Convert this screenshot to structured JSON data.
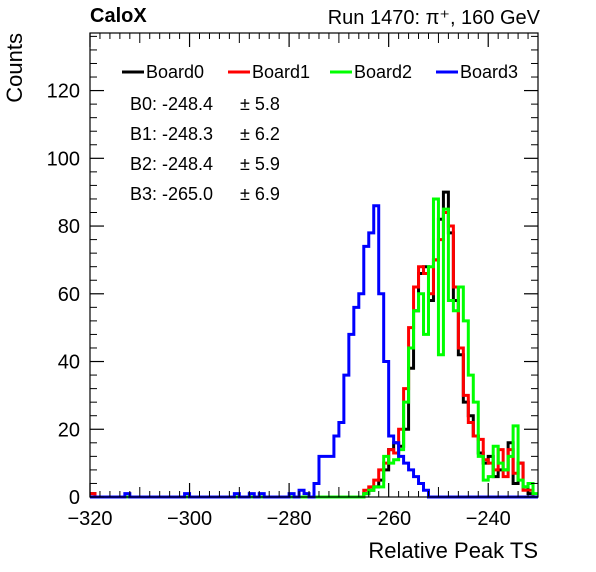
{
  "header": {
    "title_left": "CaloX",
    "title_right": "Run 1470:   π⁺, 160 GeV"
  },
  "chart_data": {
    "type": "histogram",
    "title": "",
    "xlabel": "Relative Peak TS",
    "ylabel": "Counts",
    "xlim": [
      -320,
      -230
    ],
    "ylim": [
      0,
      137
    ],
    "bin_width": 1,
    "bin_start": -320,
    "x_ticks": [
      -320,
      -300,
      -280,
      -260,
      -240
    ],
    "y_ticks": [
      0,
      20,
      40,
      60,
      80,
      100,
      120
    ],
    "grid": false,
    "legend_position": "top",
    "series": [
      {
        "name": "Board0",
        "color": "#000000",
        "values": [
          1,
          0,
          0,
          0,
          0,
          0,
          0,
          0,
          0,
          0,
          0,
          0,
          0,
          0,
          0,
          0,
          0,
          0,
          0,
          0,
          0,
          0,
          0,
          0,
          0,
          0,
          0,
          0,
          0,
          0,
          0,
          0,
          0,
          0,
          0,
          0,
          0,
          0,
          0,
          0,
          0,
          0,
          0,
          0,
          0,
          0,
          0,
          0,
          0,
          0,
          0,
          0,
          0,
          0,
          0,
          1,
          2,
          3,
          5,
          8,
          14,
          16,
          15,
          20,
          38,
          55,
          66,
          68,
          58,
          70,
          82,
          90,
          78,
          58,
          42,
          28,
          24,
          18,
          13,
          10,
          12,
          6,
          8,
          8,
          16,
          4,
          10,
          3,
          1,
          0
        ]
      },
      {
        "name": "Board1",
        "color": "#ff0000",
        "values": [
          1,
          0,
          0,
          0,
          0,
          0,
          0,
          0,
          0,
          0,
          0,
          0,
          0,
          0,
          0,
          0,
          0,
          0,
          0,
          0,
          0,
          0,
          0,
          0,
          0,
          0,
          0,
          0,
          0,
          0,
          0,
          0,
          0,
          0,
          0,
          0,
          0,
          0,
          0,
          0,
          0,
          0,
          0,
          0,
          0,
          0,
          0,
          0,
          0,
          0,
          0,
          0,
          0,
          0,
          0,
          2,
          3,
          5,
          8,
          10,
          14,
          13,
          20,
          32,
          50,
          62,
          68,
          66,
          60,
          70,
          76,
          84,
          80,
          62,
          44,
          30,
          22,
          18,
          17,
          11,
          10,
          8,
          14,
          6,
          14,
          7,
          10,
          2,
          2,
          0
        ]
      },
      {
        "name": "Board2",
        "color": "#00ff00",
        "values": [
          0,
          0,
          0,
          0,
          0,
          0,
          0,
          0,
          0,
          0,
          0,
          0,
          0,
          0,
          0,
          0,
          0,
          0,
          0,
          0,
          0,
          0,
          0,
          0,
          0,
          0,
          0,
          0,
          0,
          0,
          0,
          0,
          0,
          0,
          0,
          0,
          0,
          0,
          0,
          0,
          0,
          0,
          0,
          0,
          0,
          0,
          0,
          0,
          0,
          0,
          0,
          0,
          0,
          0,
          0,
          1,
          2,
          3,
          3,
          12,
          10,
          11,
          14,
          28,
          44,
          55,
          60,
          48,
          68,
          88,
          42,
          85,
          58,
          55,
          62,
          52,
          36,
          28,
          12,
          5,
          6,
          15,
          10,
          8,
          12,
          21,
          5,
          3,
          4,
          1
        ]
      },
      {
        "name": "Board3",
        "color": "#0000ff",
        "values": [
          0,
          0,
          0,
          0,
          0,
          0,
          0,
          1,
          0,
          0,
          0,
          0,
          0,
          0,
          0,
          0,
          0,
          0,
          0,
          1,
          0,
          0,
          0,
          0,
          0,
          0,
          0,
          0,
          0,
          1,
          0,
          0,
          1,
          0,
          1,
          0,
          0,
          0,
          0,
          0,
          1,
          0,
          2,
          1,
          0,
          4,
          12,
          12,
          12,
          18,
          22,
          36,
          48,
          56,
          60,
          74,
          78,
          86,
          60,
          40,
          18,
          16,
          12,
          10,
          8,
          6,
          4,
          2,
          0,
          0,
          0,
          0,
          0,
          0,
          0,
          0,
          0,
          0,
          0,
          0,
          0,
          0,
          0,
          0,
          0,
          0,
          0,
          0,
          0,
          0
        ]
      }
    ],
    "stats": [
      {
        "label": "B0:",
        "mean": "-248.4",
        "sigma": "± 5.8"
      },
      {
        "label": "B1:",
        "mean": "-248.3",
        "sigma": "± 6.2"
      },
      {
        "label": "B2:",
        "mean": "-248.4",
        "sigma": "± 5.9"
      },
      {
        "label": "B3:",
        "mean": "-265.0",
        "sigma": "± 6.9"
      }
    ]
  }
}
